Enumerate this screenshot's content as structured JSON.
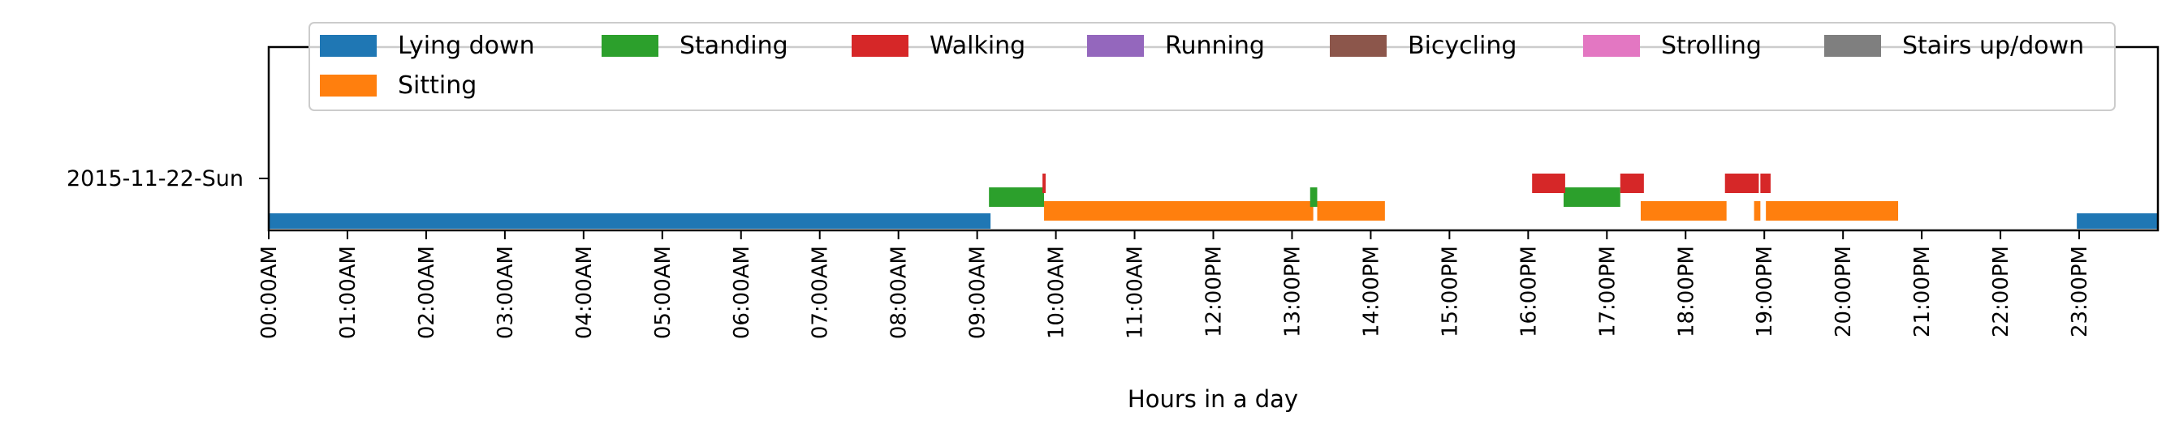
{
  "chart_data": {
    "type": "timeline",
    "title": "",
    "xlabel": "Hours in a day",
    "ylabel": "",
    "xlim": [
      0,
      24
    ],
    "row_label": "2015-11-22-Sun",
    "x_ticks": [
      {
        "value": 0,
        "label": "00:00AM"
      },
      {
        "value": 1,
        "label": "01:00AM"
      },
      {
        "value": 2,
        "label": "02:00AM"
      },
      {
        "value": 3,
        "label": "03:00AM"
      },
      {
        "value": 4,
        "label": "04:00AM"
      },
      {
        "value": 5,
        "label": "05:00AM"
      },
      {
        "value": 6,
        "label": "06:00AM"
      },
      {
        "value": 7,
        "label": "07:00AM"
      },
      {
        "value": 8,
        "label": "08:00AM"
      },
      {
        "value": 9,
        "label": "09:00AM"
      },
      {
        "value": 10,
        "label": "10:00AM"
      },
      {
        "value": 11,
        "label": "11:00AM"
      },
      {
        "value": 12,
        "label": "12:00PM"
      },
      {
        "value": 13,
        "label": "13:00PM"
      },
      {
        "value": 14,
        "label": "14:00PM"
      },
      {
        "value": 15,
        "label": "15:00PM"
      },
      {
        "value": 16,
        "label": "16:00PM"
      },
      {
        "value": 17,
        "label": "17:00PM"
      },
      {
        "value": 18,
        "label": "18:00PM"
      },
      {
        "value": 19,
        "label": "19:00PM"
      },
      {
        "value": 20,
        "label": "20:00PM"
      },
      {
        "value": 21,
        "label": "21:00PM"
      },
      {
        "value": 22,
        "label": "22:00PM"
      },
      {
        "value": 23,
        "label": "23:00PM"
      }
    ],
    "legend_position": "top",
    "series": [
      {
        "name": "Lying down",
        "color": "#1f77b4",
        "segments": [
          [
            0.0,
            9.17
          ],
          [
            22.97,
            24.0
          ]
        ]
      },
      {
        "name": "Sitting",
        "color": "#ff7f0e",
        "segments": [
          [
            9.85,
            13.27
          ],
          [
            13.32,
            14.18
          ],
          [
            17.43,
            18.52
          ],
          [
            18.87,
            18.95
          ],
          [
            19.02,
            20.7
          ]
        ]
      },
      {
        "name": "Standing",
        "color": "#2ca02c",
        "segments": [
          [
            9.15,
            9.85
          ],
          [
            13.23,
            13.32
          ],
          [
            16.45,
            17.17
          ]
        ]
      },
      {
        "name": "Walking",
        "color": "#d62728",
        "segments": [
          [
            9.83,
            9.87
          ],
          [
            16.05,
            16.47
          ],
          [
            17.17,
            17.47
          ],
          [
            18.5,
            18.93
          ],
          [
            18.95,
            19.08
          ]
        ]
      },
      {
        "name": "Running",
        "color": "#9467bd",
        "segments": []
      },
      {
        "name": "Bicycling",
        "color": "#8c564b",
        "segments": []
      },
      {
        "name": "Strolling",
        "color": "#e377c2",
        "segments": []
      },
      {
        "name": "Stairs up/down",
        "color": "#7f7f7f",
        "segments": []
      }
    ]
  }
}
